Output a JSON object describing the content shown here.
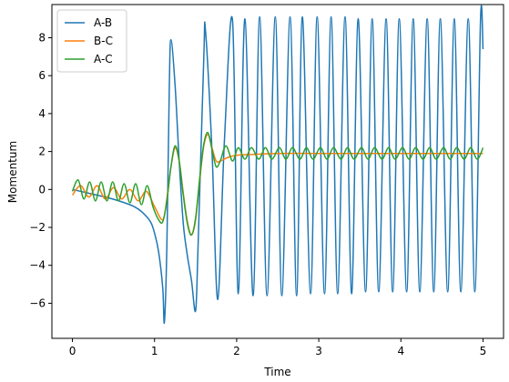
{
  "chart_data": {
    "type": "line",
    "xlabel": "Time",
    "ylabel": "Momentum",
    "xlim": [
      -0.25,
      5.25
    ],
    "ylim": [
      -7.85,
      9.75
    ],
    "xticks": [
      0,
      1,
      2,
      3,
      4,
      5
    ],
    "yticks": [
      -6,
      -4,
      -2,
      0,
      2,
      4,
      6,
      8
    ],
    "grid": false,
    "legend_position": "top-left",
    "series": [
      {
        "name": "A-B",
        "color": "#1f77b4",
        "x": [
          0.0,
          0.2,
          0.4,
          0.6,
          0.75,
          0.85,
          0.95,
          1.0,
          1.05,
          1.1,
          1.12,
          1.15,
          1.18,
          1.2,
          1.25,
          1.3,
          1.35,
          1.4,
          1.45,
          1.5,
          1.53,
          1.6,
          1.62,
          1.7,
          1.77,
          1.85,
          1.95,
          2.02,
          2.1,
          2.2,
          2.28,
          2.37,
          2.47,
          2.55,
          2.65,
          2.73,
          2.8,
          2.9,
          2.98,
          3.07,
          3.15,
          3.23,
          3.32,
          3.4,
          3.48,
          3.57,
          3.65,
          3.73,
          3.82,
          3.9,
          3.98,
          4.07,
          4.15,
          4.23,
          4.32,
          4.4,
          4.48,
          4.57,
          4.65,
          4.73,
          4.82,
          4.9,
          4.97,
          5.0
        ],
        "y": [
          0.0,
          -0.2,
          -0.4,
          -0.65,
          -0.9,
          -1.2,
          -1.7,
          -2.3,
          -3.3,
          -5.2,
          -7.0,
          -3.0,
          5.5,
          7.9,
          5.5,
          1.5,
          -1.8,
          -3.5,
          -4.8,
          -6.4,
          -3.0,
          7.0,
          8.4,
          2.0,
          -5.8,
          2.5,
          8.9,
          -5.5,
          9.0,
          -5.6,
          9.1,
          -5.6,
          9.1,
          -5.6,
          9.1,
          -5.6,
          9.1,
          -5.5,
          9.1,
          -5.5,
          9.1,
          -5.5,
          9.1,
          -5.5,
          9.0,
          -5.4,
          9.0,
          -5.4,
          9.0,
          -5.4,
          9.0,
          -5.4,
          9.0,
          -5.4,
          9.0,
          -5.4,
          9.0,
          -5.4,
          9.0,
          -5.4,
          9.0,
          -5.4,
          9.0,
          7.4
        ]
      },
      {
        "name": "B-C",
        "color": "#ff7f0e",
        "x": [
          0.0,
          0.1,
          0.2,
          0.3,
          0.4,
          0.5,
          0.6,
          0.7,
          0.8,
          0.9,
          1.0,
          1.1,
          1.15,
          1.2,
          1.25,
          1.3,
          1.35,
          1.4,
          1.45,
          1.5,
          1.55,
          1.6,
          1.65,
          1.7,
          1.75,
          1.8,
          1.9,
          2.0,
          2.2,
          2.5,
          3.0,
          3.5,
          4.0,
          4.5,
          5.0
        ],
        "y": [
          -0.3,
          0.2,
          -0.4,
          0.2,
          -0.5,
          0.1,
          -0.5,
          0.0,
          -0.6,
          -0.1,
          -0.9,
          -1.6,
          -0.5,
          1.2,
          2.2,
          1.5,
          -0.2,
          -1.7,
          -2.4,
          -1.6,
          0.5,
          2.3,
          2.9,
          2.2,
          1.5,
          1.5,
          1.7,
          1.8,
          1.85,
          1.9,
          1.9,
          1.9,
          1.9,
          1.9,
          1.9
        ]
      },
      {
        "name": "A-C",
        "color": "#2ca02c",
        "x": [
          0.0,
          0.07,
          0.14,
          0.21,
          0.28,
          0.35,
          0.42,
          0.49,
          0.56,
          0.63,
          0.7,
          0.77,
          0.84,
          0.91,
          0.98,
          1.05,
          1.1,
          1.15,
          1.2,
          1.25,
          1.3,
          1.35,
          1.4,
          1.45,
          1.5,
          1.55,
          1.6,
          1.65,
          1.7,
          1.75,
          1.8,
          1.87,
          1.95,
          2.02,
          2.1,
          2.18,
          2.27,
          2.35,
          2.43,
          2.52,
          2.6,
          2.68,
          2.77,
          2.85,
          2.93,
          3.02,
          3.1,
          3.18,
          3.27,
          3.35,
          3.43,
          3.52,
          3.6,
          3.68,
          3.77,
          3.85,
          3.93,
          4.02,
          4.1,
          4.18,
          4.27,
          4.35,
          4.43,
          4.52,
          4.6,
          4.68,
          4.77,
          4.85,
          4.93,
          5.0
        ],
        "y": [
          -0.1,
          0.5,
          -0.5,
          0.4,
          -0.6,
          0.4,
          -0.6,
          0.4,
          -0.6,
          0.3,
          -0.7,
          0.3,
          -0.8,
          0.2,
          -0.9,
          -1.6,
          -1.7,
          -0.6,
          1.2,
          2.3,
          1.5,
          -0.3,
          -1.8,
          -2.4,
          -1.5,
          0.6,
          2.4,
          3.0,
          2.1,
          1.2,
          1.5,
          2.3,
          1.5,
          2.2,
          1.6,
          2.2,
          1.6,
          2.2,
          1.6,
          2.2,
          1.6,
          2.2,
          1.6,
          2.2,
          1.6,
          2.2,
          1.6,
          2.2,
          1.6,
          2.2,
          1.6,
          2.2,
          1.6,
          2.2,
          1.6,
          2.2,
          1.6,
          2.2,
          1.6,
          2.2,
          1.6,
          2.2,
          1.6,
          2.2,
          1.6,
          2.2,
          1.6,
          2.2,
          1.6,
          2.2
        ]
      }
    ]
  }
}
